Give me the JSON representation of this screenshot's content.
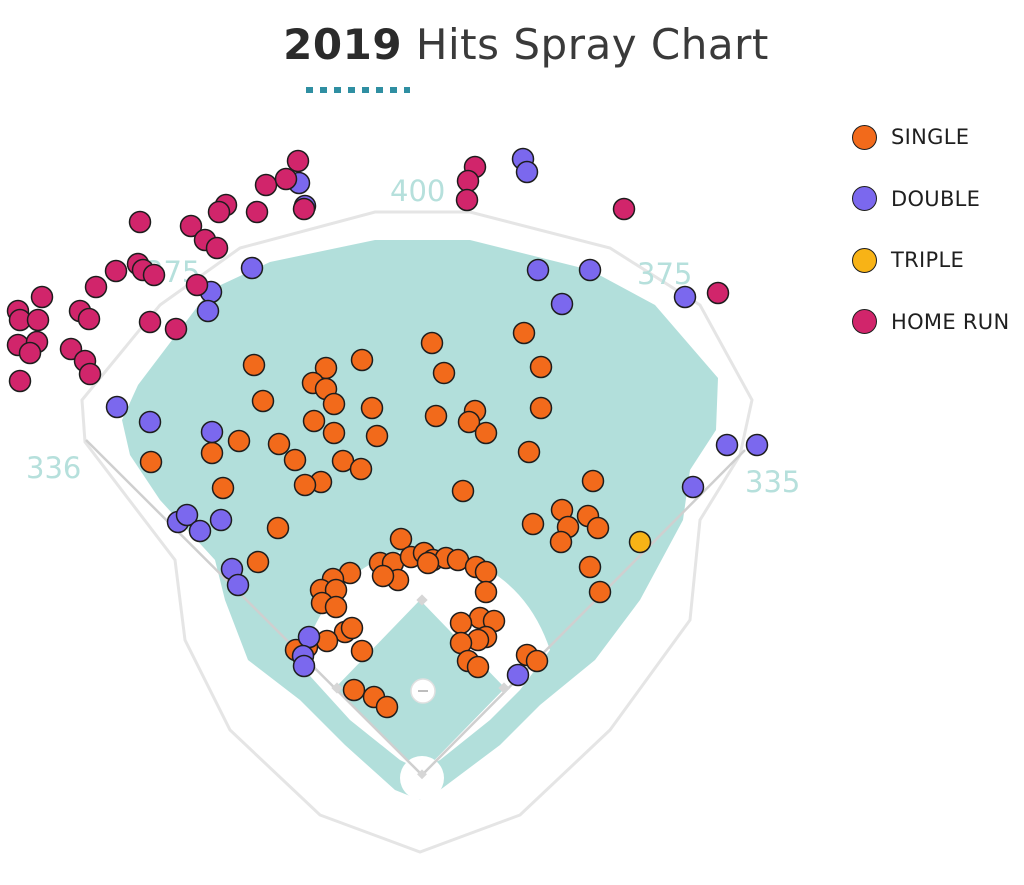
{
  "title": {
    "year": "2019",
    "rest": "Hits Spray Chart"
  },
  "colors": {
    "single": "#f26a1b",
    "double": "#7b68ee",
    "triple": "#f8b316",
    "home_run": "#d1256b",
    "grass": "#b2dfdb",
    "wall": "#e8e8e8",
    "title_accent": "#2f8fa2"
  },
  "legend": [
    {
      "key": "single",
      "label": "SINGLE"
    },
    {
      "key": "double",
      "label": "DOUBLE"
    },
    {
      "key": "triple",
      "label": "TRIPLE"
    },
    {
      "key": "home_run",
      "label": "HOME RUN"
    }
  ],
  "field": {
    "distances": {
      "left_field_line": "336",
      "left_center": "375",
      "center_field": "400",
      "right_center": "375",
      "right_field_line": "335"
    }
  },
  "chart_data": {
    "type": "scatter",
    "title": "2019 Hits Spray Chart",
    "xlabel": "",
    "ylabel": "",
    "grid": false,
    "legend_position": "top-right",
    "series": [
      {
        "name": "SINGLE",
        "points": [
          [
            254,
            365
          ],
          [
            326,
            368
          ],
          [
            362,
            360
          ],
          [
            432,
            343
          ],
          [
            524,
            333
          ],
          [
            541,
            367
          ],
          [
            444,
            373
          ],
          [
            313,
            383
          ],
          [
            326,
            389
          ],
          [
            334,
            404
          ],
          [
            263,
            401
          ],
          [
            372,
            408
          ],
          [
            541,
            408
          ],
          [
            475,
            411
          ],
          [
            436,
            416
          ],
          [
            314,
            421
          ],
          [
            334,
            433
          ],
          [
            377,
            436
          ],
          [
            469,
            422
          ],
          [
            486,
            433
          ],
          [
            239,
            441
          ],
          [
            279,
            444
          ],
          [
            212,
            453
          ],
          [
            295,
            460
          ],
          [
            343,
            461
          ],
          [
            361,
            469
          ],
          [
            529,
            452
          ],
          [
            321,
            482
          ],
          [
            305,
            485
          ],
          [
            223,
            488
          ],
          [
            463,
            491
          ],
          [
            593,
            481
          ],
          [
            151,
            462
          ],
          [
            278,
            528
          ],
          [
            533,
            524
          ],
          [
            562,
            510
          ],
          [
            588,
            516
          ],
          [
            568,
            527
          ],
          [
            598,
            528
          ],
          [
            561,
            542
          ],
          [
            401,
            539
          ],
          [
            258,
            562
          ],
          [
            590,
            567
          ],
          [
            600,
            592
          ],
          [
            380,
            563
          ],
          [
            393,
            563
          ],
          [
            411,
            557
          ],
          [
            424,
            553
          ],
          [
            433,
            560
          ],
          [
            446,
            558
          ],
          [
            458,
            560
          ],
          [
            476,
            567
          ],
          [
            486,
            572
          ],
          [
            486,
            592
          ],
          [
            398,
            580
          ],
          [
            428,
            563
          ],
          [
            383,
            576
          ],
          [
            350,
            573
          ],
          [
            333,
            579
          ],
          [
            321,
            590
          ],
          [
            336,
            590
          ],
          [
            322,
            603
          ],
          [
            336,
            607
          ],
          [
            480,
            618
          ],
          [
            494,
            621
          ],
          [
            461,
            623
          ],
          [
            486,
            637
          ],
          [
            478,
            640
          ],
          [
            461,
            643
          ],
          [
            345,
            632
          ],
          [
            352,
            628
          ],
          [
            327,
            641
          ],
          [
            307,
            647
          ],
          [
            362,
            651
          ],
          [
            296,
            650
          ],
          [
            468,
            661
          ],
          [
            478,
            667
          ],
          [
            527,
            655
          ],
          [
            537,
            661
          ],
          [
            354,
            690
          ],
          [
            374,
            697
          ],
          [
            387,
            707
          ]
        ]
      },
      {
        "name": "DOUBLE",
        "points": [
          [
            523,
            159
          ],
          [
            527,
            172
          ],
          [
            299,
            183
          ],
          [
            305,
            206
          ],
          [
            252,
            268
          ],
          [
            538,
            270
          ],
          [
            590,
            270
          ],
          [
            562,
            304
          ],
          [
            685,
            297
          ],
          [
            211,
            292
          ],
          [
            208,
            311
          ],
          [
            117,
            407
          ],
          [
            150,
            422
          ],
          [
            212,
            432
          ],
          [
            727,
            445
          ],
          [
            757,
            445
          ],
          [
            693,
            487
          ],
          [
            221,
            520
          ],
          [
            178,
            522
          ],
          [
            187,
            515
          ],
          [
            200,
            531
          ],
          [
            232,
            569
          ],
          [
            238,
            585
          ],
          [
            309,
            637
          ],
          [
            303,
            656
          ],
          [
            304,
            666
          ],
          [
            518,
            675
          ]
        ]
      },
      {
        "name": "TRIPLE",
        "points": [
          [
            640,
            542
          ]
        ]
      },
      {
        "name": "HOME RUN",
        "points": [
          [
            298,
            161
          ],
          [
            475,
            167
          ],
          [
            468,
            181
          ],
          [
            266,
            185
          ],
          [
            286,
            179
          ],
          [
            467,
            200
          ],
          [
            624,
            209
          ],
          [
            226,
            205
          ],
          [
            219,
            212
          ],
          [
            257,
            212
          ],
          [
            304,
            209
          ],
          [
            140,
            222
          ],
          [
            191,
            226
          ],
          [
            205,
            240
          ],
          [
            217,
            248
          ],
          [
            138,
            264
          ],
          [
            116,
            271
          ],
          [
            143,
            270
          ],
          [
            154,
            275
          ],
          [
            96,
            287
          ],
          [
            197,
            285
          ],
          [
            718,
            293
          ],
          [
            42,
            297
          ],
          [
            18,
            311
          ],
          [
            20,
            320
          ],
          [
            38,
            320
          ],
          [
            80,
            311
          ],
          [
            89,
            319
          ],
          [
            150,
            322
          ],
          [
            176,
            329
          ],
          [
            18,
            345
          ],
          [
            37,
            342
          ],
          [
            30,
            353
          ],
          [
            71,
            349
          ],
          [
            85,
            361
          ],
          [
            90,
            374
          ],
          [
            20,
            381
          ]
        ]
      }
    ]
  }
}
